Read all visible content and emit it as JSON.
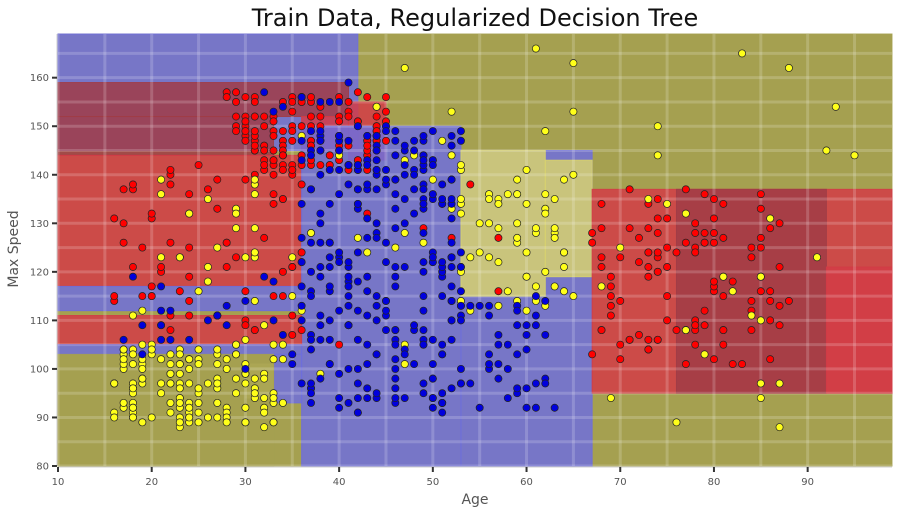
{
  "chart_data": {
    "type": "scatter",
    "title": "Train Data, Regularized Decision Tree",
    "xlabel": "Age",
    "ylabel": "Max Speed",
    "xlim": [
      10,
      99
    ],
    "ylim": [
      80,
      169
    ],
    "xticks": [
      "10",
      "20",
      "30",
      "40",
      "50",
      "60",
      "70",
      "80",
      "90"
    ],
    "yticks": [
      "80",
      "90",
      "100",
      "110",
      "120",
      "130",
      "140",
      "150",
      "160"
    ],
    "grid": true,
    "legend": "none",
    "colors": {
      "class_red": "#ff0000",
      "class_blue": "#0000dd",
      "class_yellow": "#ffff1a",
      "region_red": "#d23c46",
      "region_blue": "#6e6edc",
      "region_yellow": "#d7d26e",
      "region_olive": "#a5a050",
      "region_darkred": "#a03c46"
    },
    "regions": [
      {
        "cls": "olive",
        "x": [
          10,
          99
        ],
        "y": [
          80,
          169
        ]
      },
      {
        "cls": "blue",
        "x": [
          10,
          42
        ],
        "y": [
          145,
          169
        ]
      },
      {
        "cls": "darkred",
        "x": [
          10,
          41
        ],
        "y": [
          152,
          159
        ]
      },
      {
        "cls": "darkred",
        "x": [
          10,
          33
        ],
        "y": [
          144,
          152
        ]
      },
      {
        "cls": "red",
        "x": [
          10,
          36
        ],
        "y": [
          117,
          144
        ]
      },
      {
        "cls": "red",
        "x": [
          36,
          41
        ],
        "y": [
          145,
          152
        ]
      },
      {
        "cls": "red",
        "x": [
          41,
          45
        ],
        "y": [
          143,
          155
        ]
      },
      {
        "cls": "blue",
        "x": [
          36,
          53
        ],
        "y": [
          80,
          150
        ]
      },
      {
        "cls": "blue",
        "x": [
          10,
          36
        ],
        "y": [
          112,
          117
        ]
      },
      {
        "cls": "red",
        "x": [
          10,
          36
        ],
        "y": [
          105,
          111
        ]
      },
      {
        "cls": "blue",
        "x": [
          10,
          36
        ],
        "y": [
          103,
          105
        ]
      },
      {
        "cls": "blue",
        "x": [
          33,
          36
        ],
        "y": [
          93,
          103
        ]
      },
      {
        "cls": "yellow",
        "x": [
          30,
          33
        ],
        "y": [
          94,
          101
        ]
      },
      {
        "cls": "olive",
        "x": [
          10,
          33
        ],
        "y": [
          80,
          103
        ]
      },
      {
        "cls": "blue",
        "x": [
          53,
          67
        ],
        "y": [
          80,
          145
        ]
      },
      {
        "cls": "yellow",
        "x": [
          53,
          62
        ],
        "y": [
          115,
          145
        ]
      },
      {
        "cls": "yellow",
        "x": [
          62,
          67
        ],
        "y": [
          119,
          143
        ]
      },
      {
        "cls": "red",
        "x": [
          67,
          99
        ],
        "y": [
          95,
          137
        ]
      },
      {
        "cls": "darkred",
        "x": [
          76,
          92
        ],
        "y": [
          95,
          137
        ]
      },
      {
        "cls": "red",
        "x": [
          92,
          99
        ],
        "y": [
          95,
          121
        ]
      }
    ],
    "clusters": [
      {
        "cls": "red",
        "x": [
          28,
          45
        ],
        "y": [
          140,
          157
        ],
        "n": 130
      },
      {
        "cls": "red",
        "x": [
          16,
          36
        ],
        "y": [
          112,
          142
        ],
        "n": 55
      },
      {
        "cls": "red",
        "x": [
          21,
          36
        ],
        "y": [
          105,
          112
        ],
        "n": 12
      },
      {
        "cls": "red",
        "x": [
          67,
          88
        ],
        "y": [
          100,
          137
        ],
        "n": 110
      },
      {
        "cls": "red",
        "x": [
          36,
          62
        ],
        "y": [
          105,
          140
        ],
        "n": 10
      },
      {
        "cls": "yellow",
        "x": [
          16,
          34
        ],
        "y": [
          88,
          105
        ],
        "n": 130
      },
      {
        "cls": "yellow",
        "x": [
          18,
          38
        ],
        "y": [
          106,
          140
        ],
        "n": 30
      },
      {
        "cls": "yellow",
        "x": [
          52,
          65
        ],
        "y": [
          112,
          145
        ],
        "n": 60
      },
      {
        "cls": "yellow",
        "x": [
          40,
          95
        ],
        "y": [
          140,
          167
        ],
        "n": 14
      },
      {
        "cls": "yellow",
        "x": [
          67,
          92
        ],
        "y": [
          88,
          137
        ],
        "n": 20
      },
      {
        "cls": "yellow",
        "x": [
          36,
          55
        ],
        "y": [
          95,
          150
        ],
        "n": 20
      },
      {
        "cls": "blue",
        "x": [
          36,
          53
        ],
        "y": [
          90,
          150
        ],
        "n": 270
      },
      {
        "cls": "blue",
        "x": [
          53,
          63
        ],
        "y": [
          92,
          115
        ],
        "n": 40
      },
      {
        "cls": "blue",
        "x": [
          17,
          36
        ],
        "y": [
          100,
          120
        ],
        "n": 25
      },
      {
        "cls": "blue",
        "x": [
          32,
          42
        ],
        "y": [
          150,
          160
        ],
        "n": 8
      }
    ]
  }
}
